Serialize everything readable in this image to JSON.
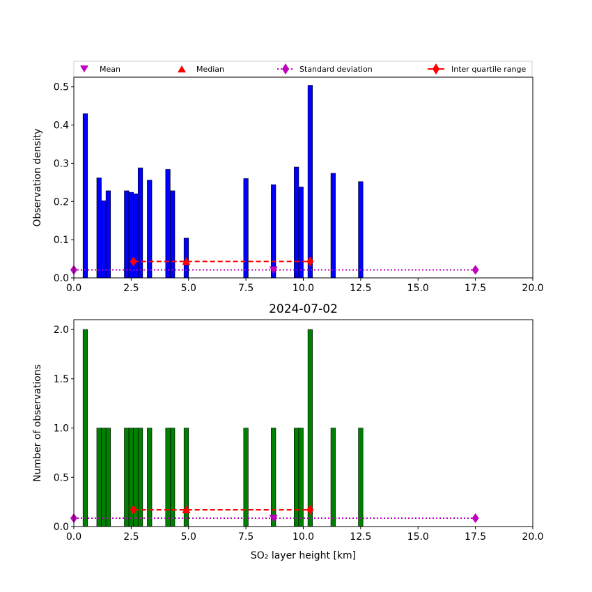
{
  "legend": {
    "mean": "Mean",
    "median": "Median",
    "std": "Standard deviation",
    "iqr": "Inter quartile range"
  },
  "colors": {
    "density_bar": "#0000ff",
    "count_bar": "#008000",
    "stat_red": "#ff0000",
    "stat_magenta": "#bf00bf"
  },
  "chart_data": [
    {
      "type": "bar",
      "title": "",
      "xlabel": "",
      "ylabel": "Observation density",
      "xlim": [
        0,
        20
      ],
      "ylim": [
        0,
        0.525
      ],
      "xticks": [
        "0.0",
        "2.5",
        "5.0",
        "7.5",
        "10.0",
        "12.5",
        "15.0",
        "17.5",
        "20.0"
      ],
      "yticks": [
        "0.0",
        "0.1",
        "0.2",
        "0.3",
        "0.4",
        "0.5"
      ],
      "bins": [
        {
          "x0": 0.4,
          "x1": 0.6,
          "value": 0.43
        },
        {
          "x0": 1.0,
          "x1": 1.2,
          "value": 0.262
        },
        {
          "x0": 1.2,
          "x1": 1.4,
          "value": 0.202
        },
        {
          "x0": 1.4,
          "x1": 1.6,
          "value": 0.228
        },
        {
          "x0": 2.2,
          "x1": 2.4,
          "value": 0.228
        },
        {
          "x0": 2.4,
          "x1": 2.6,
          "value": 0.224
        },
        {
          "x0": 2.6,
          "x1": 2.8,
          "value": 0.22
        },
        {
          "x0": 2.8,
          "x1": 3.0,
          "value": 0.288
        },
        {
          "x0": 3.2,
          "x1": 3.4,
          "value": 0.256
        },
        {
          "x0": 4.0,
          "x1": 4.2,
          "value": 0.284
        },
        {
          "x0": 4.2,
          "x1": 4.4,
          "value": 0.228
        },
        {
          "x0": 4.8,
          "x1": 5.0,
          "value": 0.104
        },
        {
          "x0": 7.4,
          "x1": 7.6,
          "value": 0.26
        },
        {
          "x0": 8.6,
          "x1": 8.8,
          "value": 0.244
        },
        {
          "x0": 9.6,
          "x1": 9.8,
          "value": 0.29
        },
        {
          "x0": 9.8,
          "x1": 10.0,
          "value": 0.238
        },
        {
          "x0": 10.2,
          "x1": 10.4,
          "value": 0.504
        },
        {
          "x0": 11.2,
          "x1": 11.4,
          "value": 0.274
        },
        {
          "x0": 12.4,
          "x1": 12.6,
          "value": 0.252
        }
      ],
      "stats": {
        "mean": {
          "x": 8.7,
          "y": 0.021
        },
        "median": {
          "x": 4.9,
          "y": 0.043
        },
        "std": {
          "x0": 0.0,
          "x1": 17.5,
          "y": 0.021
        },
        "iqr": {
          "x0": 2.6,
          "x1": 10.3,
          "y": 0.043
        }
      }
    },
    {
      "type": "bar",
      "title": "2024-07-02",
      "xlabel": "SO₂ layer height [km]",
      "ylabel": "Number of observations",
      "xlim": [
        0,
        20
      ],
      "ylim": [
        0,
        2.1
      ],
      "xticks": [
        "0.0",
        "2.5",
        "5.0",
        "7.5",
        "10.0",
        "12.5",
        "15.0",
        "17.5",
        "20.0"
      ],
      "yticks": [
        "0.0",
        "0.5",
        "1.0",
        "1.5",
        "2.0"
      ],
      "bins": [
        {
          "x0": 0.4,
          "x1": 0.6,
          "value": 2
        },
        {
          "x0": 1.0,
          "x1": 1.2,
          "value": 1
        },
        {
          "x0": 1.2,
          "x1": 1.4,
          "value": 1
        },
        {
          "x0": 1.4,
          "x1": 1.6,
          "value": 1
        },
        {
          "x0": 2.2,
          "x1": 2.4,
          "value": 1
        },
        {
          "x0": 2.4,
          "x1": 2.6,
          "value": 1
        },
        {
          "x0": 2.6,
          "x1": 2.8,
          "value": 1
        },
        {
          "x0": 2.8,
          "x1": 3.0,
          "value": 1
        },
        {
          "x0": 3.2,
          "x1": 3.4,
          "value": 1
        },
        {
          "x0": 4.0,
          "x1": 4.2,
          "value": 1
        },
        {
          "x0": 4.2,
          "x1": 4.4,
          "value": 1
        },
        {
          "x0": 4.8,
          "x1": 5.0,
          "value": 1
        },
        {
          "x0": 7.4,
          "x1": 7.6,
          "value": 1
        },
        {
          "x0": 8.6,
          "x1": 8.8,
          "value": 1
        },
        {
          "x0": 9.6,
          "x1": 9.8,
          "value": 1
        },
        {
          "x0": 9.8,
          "x1": 10.0,
          "value": 1
        },
        {
          "x0": 10.2,
          "x1": 10.4,
          "value": 2
        },
        {
          "x0": 11.2,
          "x1": 11.4,
          "value": 1
        },
        {
          "x0": 12.4,
          "x1": 12.6,
          "value": 1
        }
      ],
      "stats": {
        "mean": {
          "x": 8.7,
          "y": 0.085
        },
        "median": {
          "x": 4.9,
          "y": 0.17
        },
        "std": {
          "x0": 0.0,
          "x1": 17.5,
          "y": 0.085
        },
        "iqr": {
          "x0": 2.6,
          "x1": 10.3,
          "y": 0.17
        }
      }
    }
  ]
}
